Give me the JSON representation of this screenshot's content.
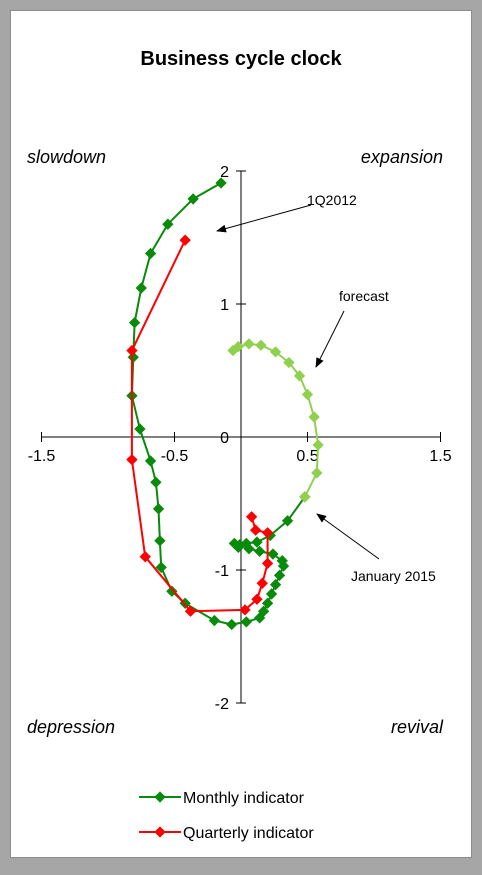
{
  "chart_data": {
    "type": "line",
    "title": "Business cycle clock",
    "xlim": [
      -1.5,
      1.5
    ],
    "ylim": [
      -2,
      2
    ],
    "x_ticks": [
      "-1.5",
      "-0.5",
      "0.5",
      "1.5"
    ],
    "y_ticks": [
      "2",
      "1",
      "0",
      "-1",
      "-2"
    ],
    "quadrant_labels": {
      "top_left": "slowdown",
      "top_right": "expansion",
      "bottom_left": "depression",
      "bottom_right": "revival"
    },
    "annotations": [
      "1Q2012",
      "forecast",
      "January 2015"
    ],
    "legend_position": "bottom",
    "series": [
      {
        "name": "Monthly indicator",
        "color": "#0a8a0a",
        "points": [
          [
            -0.15,
            1.91
          ],
          [
            -0.36,
            1.79
          ],
          [
            -0.55,
            1.6
          ],
          [
            -0.68,
            1.38
          ],
          [
            -0.75,
            1.12
          ],
          [
            -0.8,
            0.86
          ],
          [
            -0.81,
            0.6
          ],
          [
            -0.82,
            0.31
          ],
          [
            -0.76,
            0.06
          ],
          [
            -0.68,
            -0.18
          ],
          [
            -0.64,
            -0.34
          ],
          [
            -0.62,
            -0.54
          ],
          [
            -0.61,
            -0.78
          ],
          [
            -0.6,
            -0.98
          ],
          [
            -0.52,
            -1.16
          ],
          [
            -0.42,
            -1.25
          ],
          [
            -0.2,
            -1.38
          ],
          [
            -0.07,
            -1.41
          ],
          [
            0.04,
            -1.39
          ],
          [
            0.14,
            -1.36
          ],
          [
            0.17,
            -1.31
          ],
          [
            0.2,
            -1.25
          ],
          [
            0.23,
            -1.18
          ],
          [
            0.26,
            -1.11
          ],
          [
            0.29,
            -1.04
          ],
          [
            0.32,
            -0.97
          ],
          [
            0.31,
            -0.93
          ],
          [
            0.24,
            -0.88
          ],
          [
            0.14,
            -0.86
          ],
          [
            0.06,
            -0.84
          ],
          [
            -0.01,
            -0.81
          ],
          [
            -0.05,
            -0.8
          ],
          [
            -0.02,
            -0.83
          ],
          [
            0.04,
            -0.8
          ],
          [
            0.12,
            -0.79
          ],
          [
            0.22,
            -0.74
          ],
          [
            0.35,
            -0.63
          ],
          [
            0.48,
            -0.45
          ]
        ]
      },
      {
        "name": "Quarterly indicator",
        "color": "#ff0000",
        "points": [
          [
            -0.42,
            1.48
          ],
          [
            -0.82,
            0.65
          ],
          [
            -0.82,
            -0.17
          ],
          [
            -0.72,
            -0.9
          ],
          [
            -0.38,
            -1.31
          ],
          [
            0.03,
            -1.3
          ],
          [
            0.12,
            -1.22
          ],
          [
            0.16,
            -1.1
          ],
          [
            0.2,
            -0.95
          ],
          [
            0.2,
            -0.72
          ],
          [
            0.11,
            -0.7
          ],
          [
            0.08,
            -0.6
          ]
        ]
      },
      {
        "name": "forecast",
        "color": "#8fd14f",
        "points": [
          [
            0.48,
            -0.45
          ],
          [
            0.57,
            -0.27
          ],
          [
            0.58,
            -0.06
          ],
          [
            0.55,
            0.15
          ],
          [
            0.5,
            0.32
          ],
          [
            0.44,
            0.46
          ],
          [
            0.36,
            0.56
          ],
          [
            0.26,
            0.64
          ],
          [
            0.15,
            0.69
          ],
          [
            0.06,
            0.7
          ],
          [
            -0.02,
            0.68
          ],
          [
            -0.06,
            0.65
          ]
        ]
      }
    ]
  }
}
